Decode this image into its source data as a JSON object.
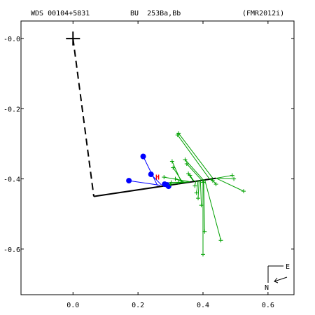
{
  "header": {
    "wds": "WDS 00104+5831",
    "discoverer": "BU  253Ba,Bb",
    "reference": "(FMR2012i)"
  },
  "compass": {
    "east": "E",
    "north": "N"
  },
  "colors": {
    "axes": "#000000",
    "orbit": "#000000",
    "speckle": "#0000ff",
    "micrometer": "#00a000",
    "hipparcos": "#ff0000"
  },
  "chart_data": {
    "type": "scatter",
    "title": "",
    "xlabel": "",
    "ylabel": "",
    "xlim": [
      -0.16,
      0.68
    ],
    "ylim": [
      -0.73,
      0.05
    ],
    "x_ticks": [
      {
        "value": 0.0,
        "label": "0.0"
      },
      {
        "value": 0.2,
        "label": "0.2"
      },
      {
        "value": 0.4,
        "label": "0.4"
      },
      {
        "value": 0.6,
        "label": "0.6"
      }
    ],
    "y_ticks": [
      {
        "value": 0.0,
        "label": "-0.0"
      },
      {
        "value": -0.2,
        "label": "-0.2"
      },
      {
        "value": -0.4,
        "label": "-0.4"
      },
      {
        "value": -0.6,
        "label": "-0.6"
      }
    ],
    "primary": {
      "x": 0.0,
      "y": 0.0
    },
    "periastron_line": {
      "from": [
        0.0,
        0.0
      ],
      "to": [
        0.064,
        -0.45
      ]
    },
    "orbit_segment": {
      "from": [
        0.064,
        -0.45
      ],
      "to": [
        0.44,
        -0.398
      ]
    },
    "hipparcos_point": {
      "x": 0.26,
      "y": -0.394,
      "label": "H"
    },
    "series": [
      {
        "kind": "speckle",
        "points": [
          {
            "x": 0.216,
            "y": -0.336,
            "fx": 0.26,
            "fy": -0.419
          },
          {
            "x": 0.172,
            "y": -0.405,
            "fx": 0.268,
            "fy": -0.418
          },
          {
            "x": 0.24,
            "y": -0.387,
            "fx": 0.272,
            "fy": -0.417
          },
          {
            "x": 0.282,
            "y": -0.415,
            "fx": 0.28,
            "fy": -0.416
          },
          {
            "x": 0.29,
            "y": -0.417,
            "fx": 0.284,
            "fy": -0.415
          },
          {
            "x": 0.292,
            "y": -0.419,
            "fx": 0.286,
            "fy": -0.415
          },
          {
            "x": 0.294,
            "y": -0.421,
            "fx": 0.288,
            "fy": -0.415
          }
        ]
      },
      {
        "kind": "micrometer",
        "points": [
          {
            "x": 0.325,
            "y": -0.27,
            "fx": 0.43,
            "fy": -0.398
          },
          {
            "x": 0.322,
            "y": -0.275,
            "fx": 0.42,
            "fy": -0.4
          },
          {
            "x": 0.345,
            "y": -0.345,
            "fx": 0.4,
            "fy": -0.402
          },
          {
            "x": 0.35,
            "y": -0.357,
            "fx": 0.395,
            "fy": -0.403
          },
          {
            "x": 0.28,
            "y": -0.395,
            "fx": 0.36,
            "fy": -0.408
          },
          {
            "x": 0.3,
            "y": -0.415,
            "fx": 0.36,
            "fy": -0.408
          },
          {
            "x": 0.302,
            "y": -0.41,
            "fx": 0.355,
            "fy": -0.409
          },
          {
            "x": 0.305,
            "y": -0.35,
            "fx": 0.335,
            "fy": -0.412
          },
          {
            "x": 0.308,
            "y": -0.368,
            "fx": 0.338,
            "fy": -0.411
          },
          {
            "x": 0.315,
            "y": -0.4,
            "fx": 0.345,
            "fy": -0.41
          },
          {
            "x": 0.325,
            "y": -0.41,
            "fx": 0.35,
            "fy": -0.409
          },
          {
            "x": 0.355,
            "y": -0.385,
            "fx": 0.37,
            "fy": -0.406
          },
          {
            "x": 0.36,
            "y": -0.39,
            "fx": 0.372,
            "fy": -0.406
          },
          {
            "x": 0.375,
            "y": -0.42,
            "fx": 0.378,
            "fy": -0.405
          },
          {
            "x": 0.38,
            "y": -0.44,
            "fx": 0.385,
            "fy": -0.404
          },
          {
            "x": 0.385,
            "y": -0.455,
            "fx": 0.388,
            "fy": -0.404
          },
          {
            "x": 0.395,
            "y": -0.475,
            "fx": 0.392,
            "fy": -0.403
          },
          {
            "x": 0.4,
            "y": -0.41,
            "fx": 0.398,
            "fy": -0.402
          },
          {
            "x": 0.405,
            "y": -0.55,
            "fx": 0.402,
            "fy": -0.402
          },
          {
            "x": 0.4,
            "y": -0.615,
            "fx": 0.4,
            "fy": -0.402
          },
          {
            "x": 0.455,
            "y": -0.575,
            "fx": 0.405,
            "fy": -0.401
          },
          {
            "x": 0.43,
            "y": -0.405,
            "fx": 0.42,
            "fy": -0.4
          },
          {
            "x": 0.44,
            "y": -0.415,
            "fx": 0.425,
            "fy": -0.399
          },
          {
            "x": 0.49,
            "y": -0.39,
            "fx": 0.44,
            "fy": -0.398
          },
          {
            "x": 0.495,
            "y": -0.4,
            "fx": 0.44,
            "fy": -0.398
          },
          {
            "x": 0.525,
            "y": -0.435,
            "fx": 0.44,
            "fy": -0.398
          }
        ]
      }
    ]
  }
}
